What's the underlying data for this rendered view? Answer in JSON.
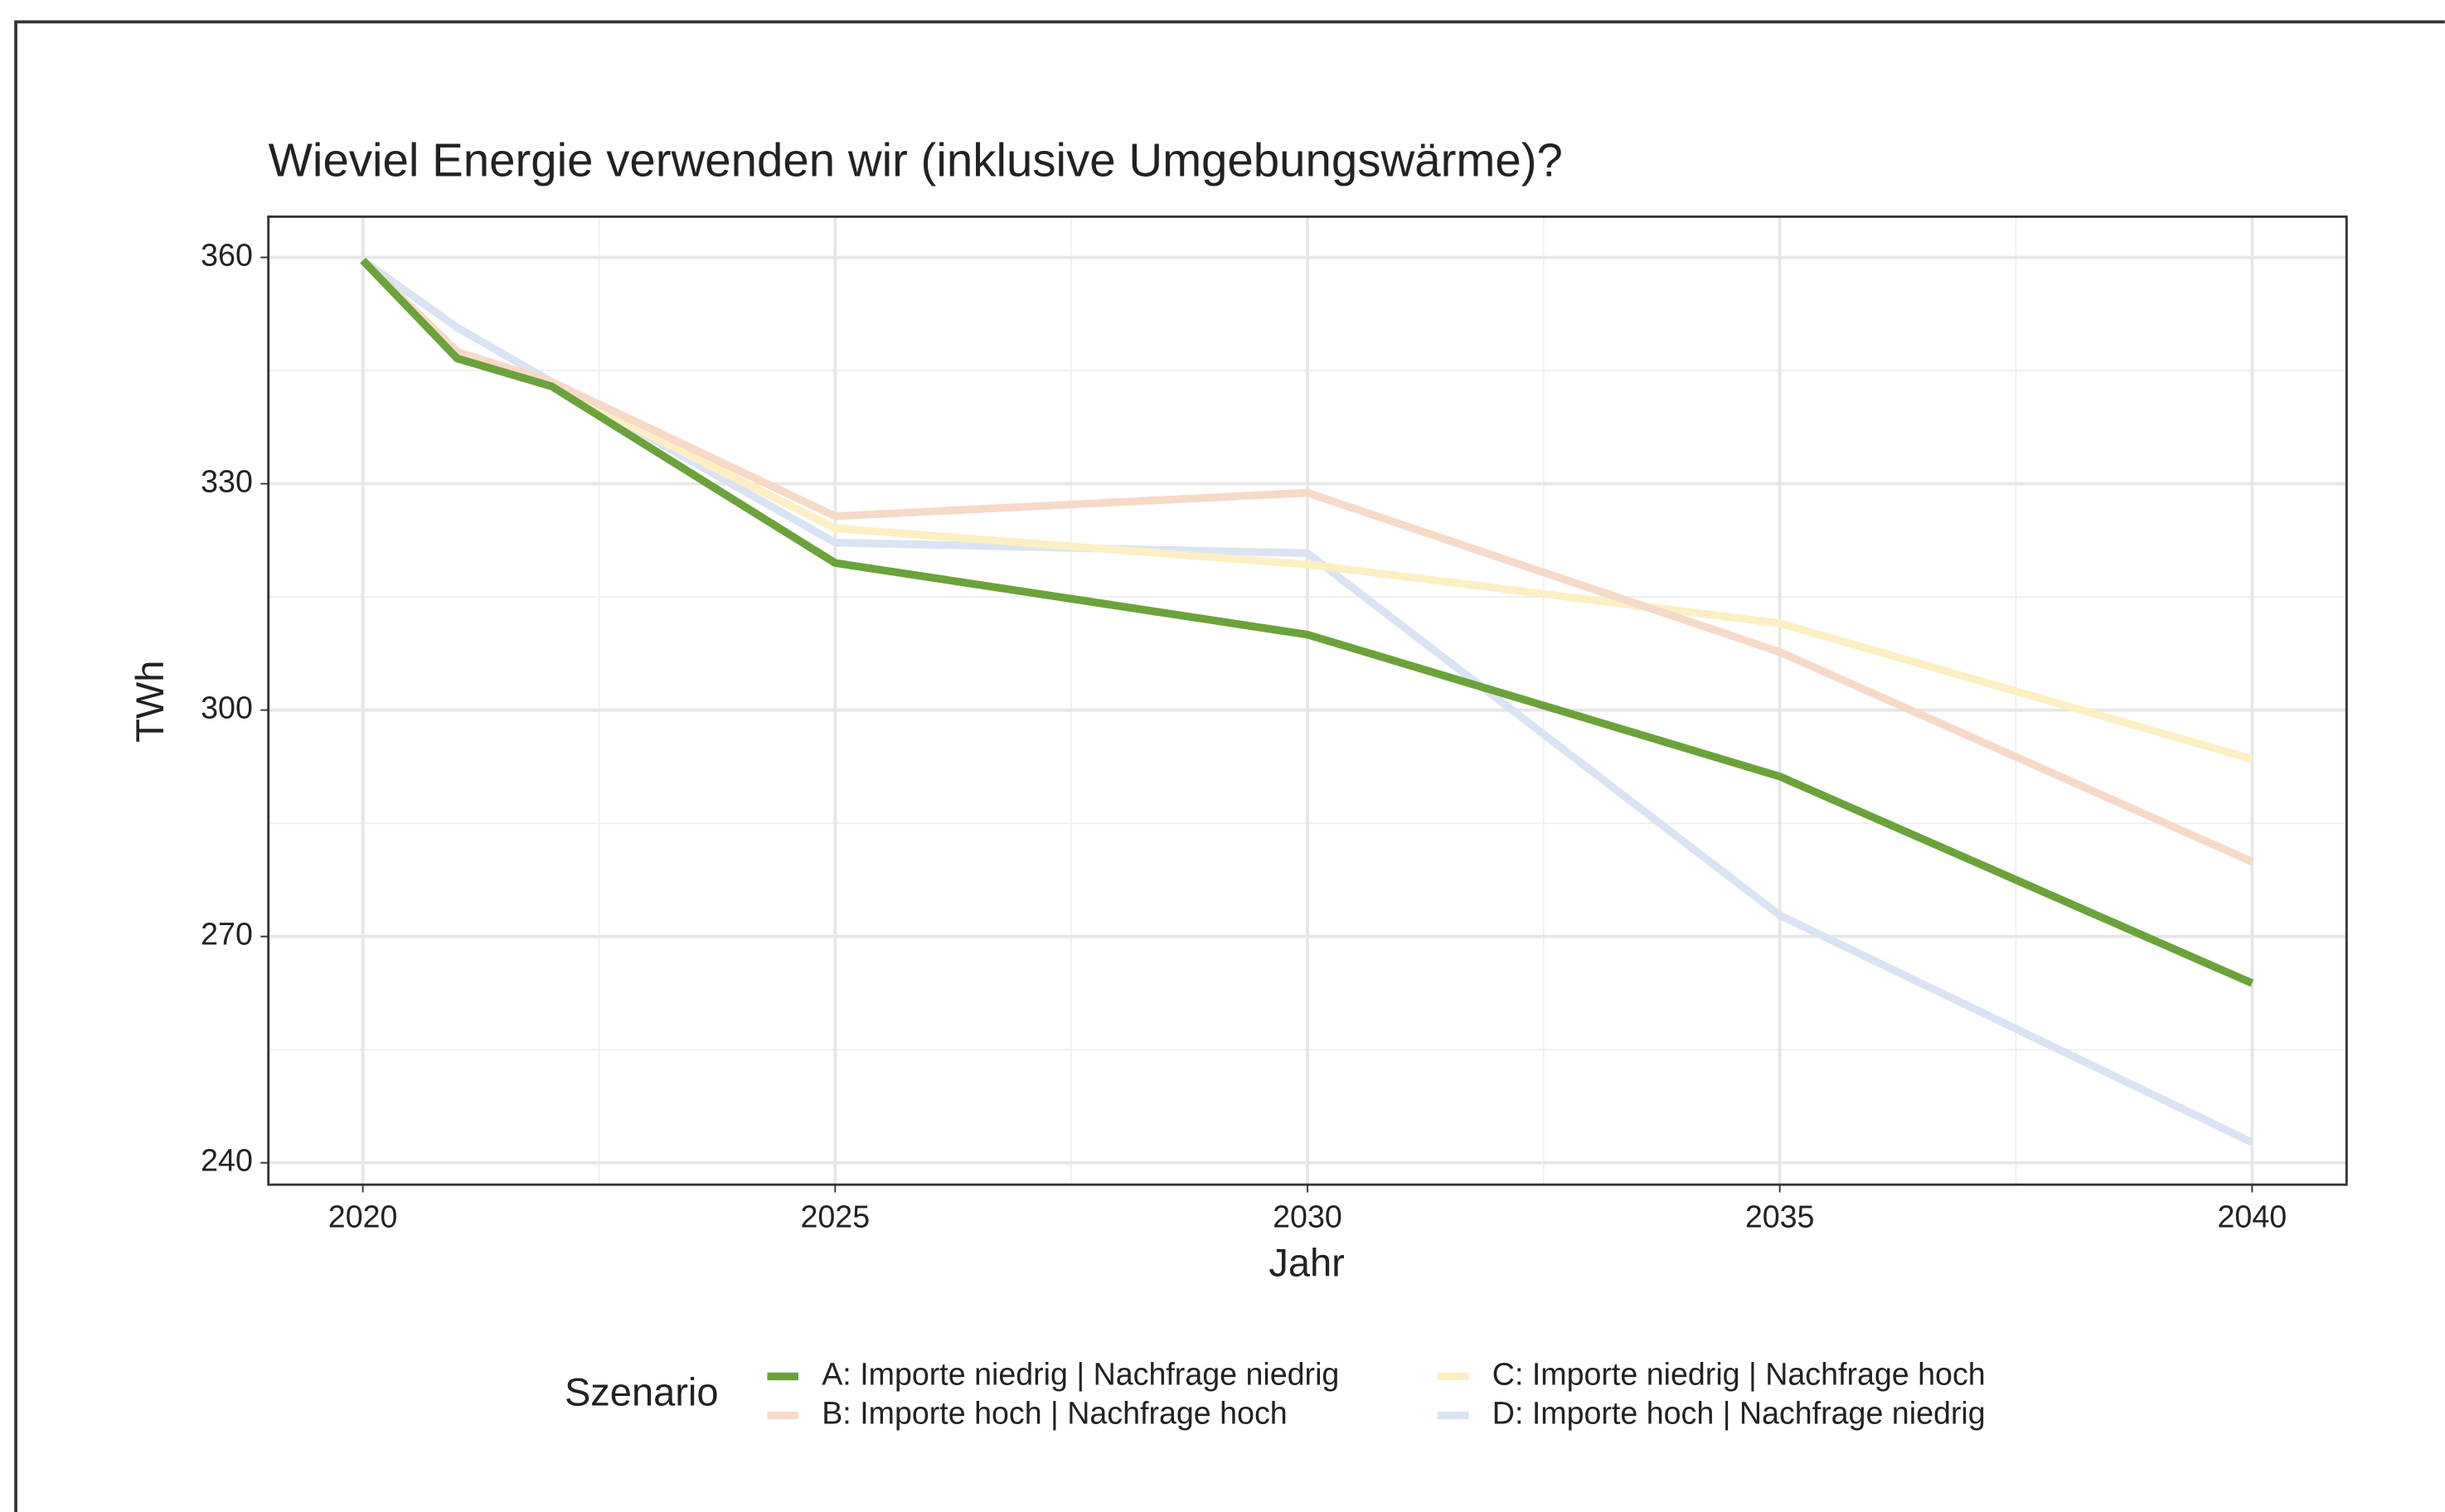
{
  "chart_data": {
    "type": "line",
    "title": "Wieviel Energie verwenden wir (inklusive Umgebungswärme)?",
    "x_label": "Jahr",
    "y_label": "TWh",
    "legend_title": "Szenario",
    "x": [
      2020,
      2021,
      2022,
      2025,
      2030,
      2035,
      2040
    ],
    "series": [
      {
        "name": "A: Importe niedrig | Nachfrage niedrig",
        "color": "#6aa33a",
        "values": [
          359.6,
          346.6,
          342.9,
          319.5,
          310.0,
          291.2,
          263.8
        ]
      },
      {
        "name": "B: Importe hoch | Nachfrage hoch",
        "color": "#f7d9c8",
        "values": [
          359.6,
          347.5,
          343.5,
          325.7,
          328.8,
          307.7,
          279.9
        ]
      },
      {
        "name": "C: Importe niedrig | Nachfrage hoch",
        "color": "#fdefc4",
        "values": [
          359.6,
          347.5,
          343.0,
          324.1,
          319.3,
          311.5,
          293.5
        ]
      },
      {
        "name": "D: Importe hoch | Nachfrage niedrig",
        "color": "#d9e3f3",
        "values": [
          359.6,
          350.7,
          343.5,
          322.2,
          320.8,
          272.8,
          242.7
        ]
      }
    ],
    "xlim": [
      2019,
      2041
    ],
    "ylim": [
      237.1,
      365.4
    ],
    "xticks": [
      2020,
      2025,
      2030,
      2035,
      2040
    ],
    "yticks": [
      240,
      270,
      300,
      330,
      360
    ],
    "grid": true
  }
}
